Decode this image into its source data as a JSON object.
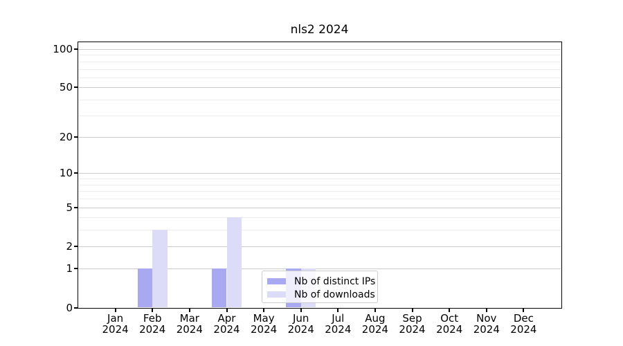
{
  "window": {
    "title": "nls2 2024"
  },
  "chart_data": {
    "type": "bar",
    "title": "nls2 2024",
    "categories": [
      "Jan",
      "Feb",
      "Mar",
      "Apr",
      "May",
      "Jun",
      "Jul",
      "Aug",
      "Sep",
      "Oct",
      "Nov",
      "Dec"
    ],
    "category_year": "2024",
    "series": [
      {
        "name": "Nb of distinct IPs",
        "color": "#a9a9f2",
        "values": [
          0,
          1,
          0,
          1,
          0,
          1,
          0,
          0,
          0,
          0,
          0,
          0
        ]
      },
      {
        "name": "Nb of downloads",
        "color": "#dcdcf8",
        "values": [
          0,
          3,
          0,
          4,
          0,
          1,
          0,
          0,
          0,
          0,
          0,
          0
        ]
      }
    ],
    "xlabel": "",
    "ylabel": "",
    "y_axis": {
      "scale": "log10(1+x)",
      "tick_values": [
        0,
        1,
        2,
        5,
        10,
        20,
        50,
        100
      ],
      "tick_labels": [
        "0",
        "1",
        "2",
        "5",
        "10",
        "20",
        "50",
        "100"
      ],
      "minor_gridline_values": [
        3,
        4,
        6,
        7,
        8,
        9,
        30,
        40,
        60,
        70,
        80,
        90
      ],
      "ylim": [
        0,
        112
      ]
    },
    "grid": "horizontal",
    "legend_position": "lower center, overlapping Jun bars"
  },
  "legend": {
    "items": [
      {
        "label": "Nb of distinct IPs",
        "color": "#a9a9f2"
      },
      {
        "label": "Nb of downloads",
        "color": "#dcdcf8"
      }
    ]
  },
  "colors": {
    "bar_distinct_ips": "#a9a9f2",
    "bar_downloads": "#dcdcf8",
    "gridline_major": "#cbcbcb",
    "gridline_minor": "#ececec",
    "axis": "#000000",
    "background": "#ffffff",
    "legend_border": "#cccccc"
  }
}
